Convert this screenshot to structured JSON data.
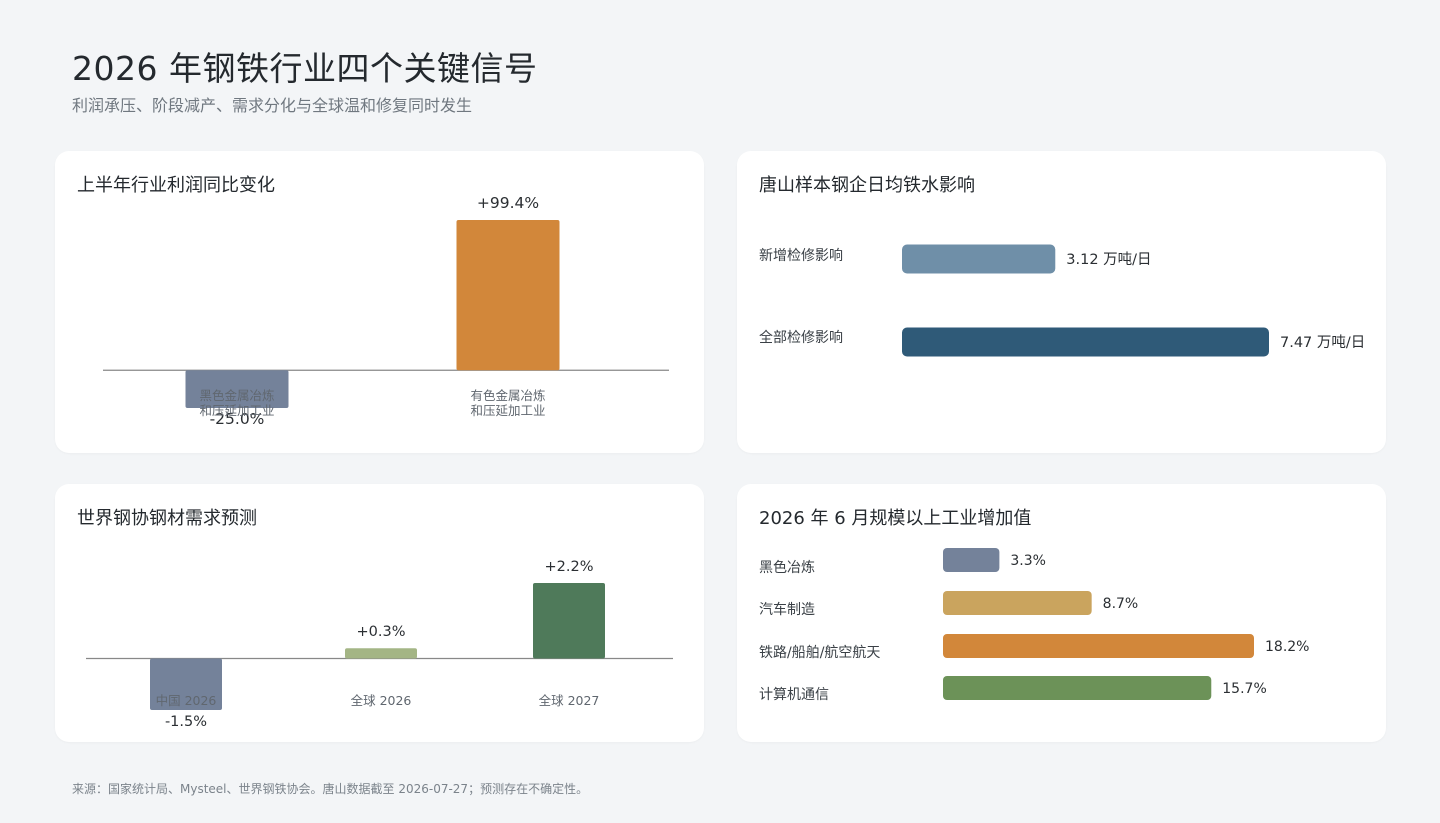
{
  "page": {
    "title": "2026 年钢铁行业四个关键信号",
    "subtitle": "利润承压、阶段减产、需求分化与全球温和修复同时发生",
    "footer": "来源：国家统计局、Mysteel、世界钢铁协会。唐山数据截至 2026-07-27；预测存在不确定性。"
  },
  "colors": {
    "background": "#f3f5f7",
    "card": "#ffffff",
    "slate": "#74829a",
    "orange": "#d2873a",
    "steel_light": "#6f8fa8",
    "steel_dark": "#2f5a78",
    "olive": "#a4b585",
    "green": "#4f7a5a",
    "gold": "#caa45e",
    "leaf": "#6c9258",
    "axis": "#888888"
  },
  "chart_data": [
    {
      "id": "profit",
      "type": "bar",
      "title": "上半年行业利润同比变化",
      "categories": [
        "黑色金属冶炼\n和压延加工业",
        "有色金属冶炼\n和压延加工业"
      ],
      "values": [
        -25.0,
        99.4
      ],
      "value_labels": [
        "-25.0%",
        "+99.4%"
      ],
      "colors": [
        "#74829a",
        "#d2873a"
      ],
      "unit": "%"
    },
    {
      "id": "tangshan",
      "type": "bar",
      "orientation": "horizontal",
      "title": "唐山样本钢企日均铁水影响",
      "categories": [
        "新增检修影响",
        "全部检修影响"
      ],
      "values": [
        3.12,
        7.47
      ],
      "value_labels": [
        "3.12 万吨/日",
        "7.47 万吨/日"
      ],
      "colors": [
        "#6f8fa8",
        "#2f5a78"
      ],
      "unit": "万吨/日"
    },
    {
      "id": "worldsteel",
      "type": "bar",
      "title": "世界钢协钢材需求预测",
      "categories": [
        "中国 2026",
        "全球 2026",
        "全球 2027"
      ],
      "values": [
        -1.5,
        0.3,
        2.2
      ],
      "value_labels": [
        "-1.5%",
        "+0.3%",
        "+2.2%"
      ],
      "colors": [
        "#74829a",
        "#a4b585",
        "#4f7a5a"
      ],
      "unit": "%"
    },
    {
      "id": "industry",
      "type": "bar",
      "orientation": "horizontal",
      "title": "2026 年 6 月规模以上工业增加值",
      "categories": [
        "黑色冶炼",
        "汽车制造",
        "铁路/船舶/航空航天",
        "计算机通信"
      ],
      "values": [
        3.3,
        8.7,
        18.2,
        15.7
      ],
      "value_labels": [
        "3.3%",
        "8.7%",
        "18.2%",
        "15.7%"
      ],
      "colors": [
        "#74829a",
        "#caa45e",
        "#d2873a",
        "#6c9258"
      ],
      "unit": "%"
    }
  ]
}
